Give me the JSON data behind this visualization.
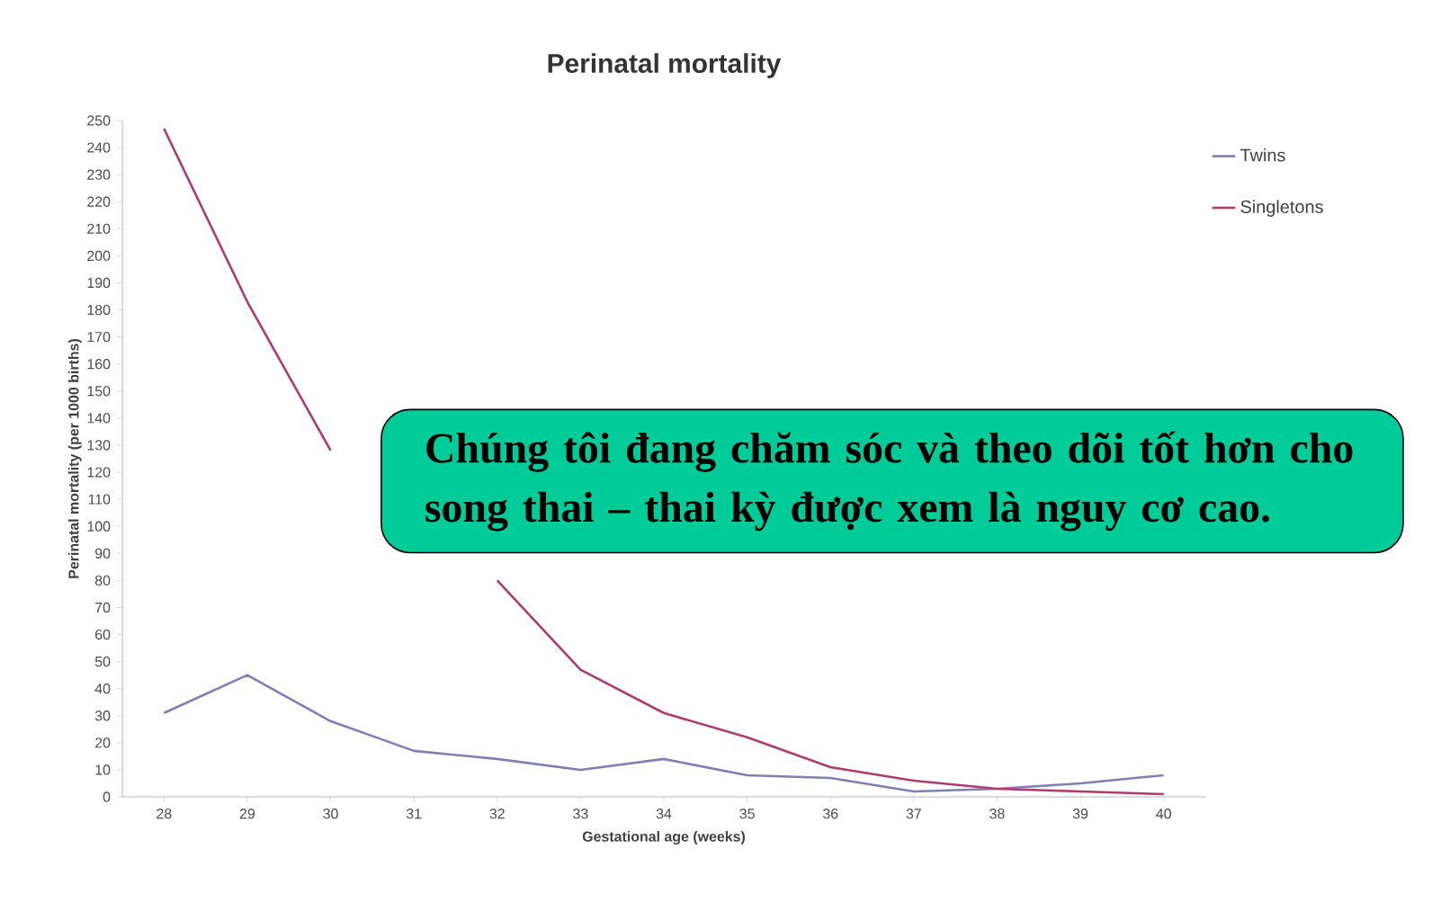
{
  "chart_data": {
    "type": "line",
    "title": "Perinatal mortality",
    "xlabel": "Gestational age (weeks)",
    "ylabel": "Perinatal mortality (per 1000 births)",
    "categories": [
      "28",
      "29",
      "30",
      "31",
      "32",
      "33",
      "34",
      "35",
      "36",
      "37",
      "38",
      "39",
      "40"
    ],
    "series": [
      {
        "name": "Twins",
        "color": "#7f7fb5",
        "values": [
          31,
          45,
          28,
          17,
          14,
          10,
          14,
          8,
          7,
          2,
          3,
          5,
          8
        ]
      },
      {
        "name": "Singletons",
        "color": "#b03a6e",
        "values": [
          247,
          183,
          128,
          null,
          80,
          47,
          31,
          22,
          11,
          6,
          3,
          2,
          1
        ]
      }
    ],
    "ylim": [
      0,
      250
    ],
    "yticks": [
      0,
      10,
      20,
      30,
      40,
      50,
      60,
      70,
      80,
      90,
      100,
      110,
      120,
      130,
      140,
      150,
      160,
      170,
      180,
      190,
      200,
      210,
      220,
      230,
      240,
      250
    ],
    "grid": false,
    "legend": "top right",
    "marker": "none",
    "line_style": "solid",
    "annotations": [
      "Chúng tôi đang chăm sóc và theo dõi tốt hơn cho song thai – thai kỳ được xem là nguy cơ cao."
    ]
  }
}
